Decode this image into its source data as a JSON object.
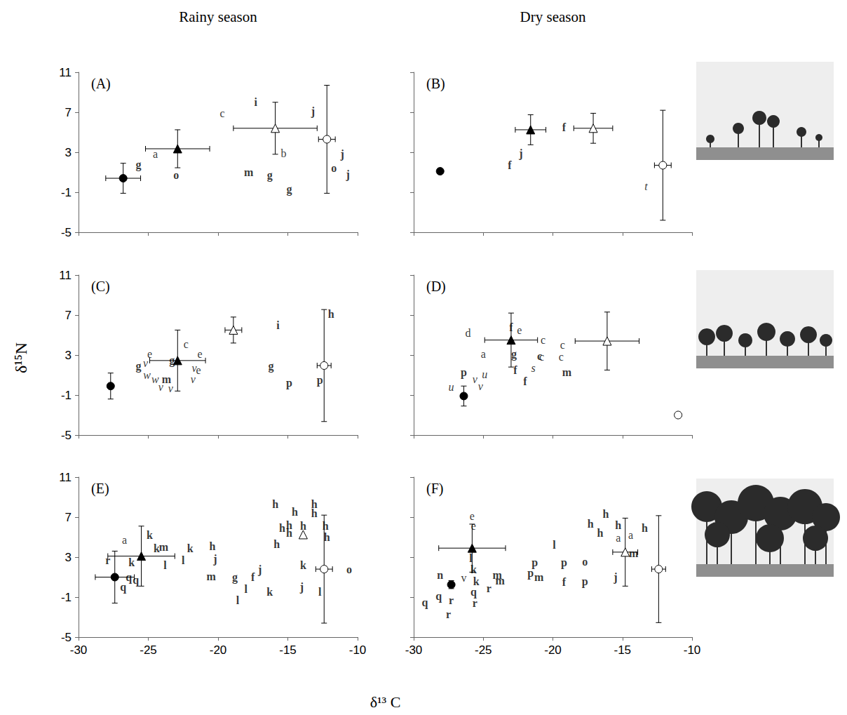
{
  "column_titles": [
    "Rainy season",
    "Dry season"
  ],
  "xlabel": "δ¹³ C",
  "ylabel": "δ¹⁵N",
  "chart_data": [
    {
      "type": "scatter",
      "title": "(A)",
      "xlim": [
        -30,
        -10
      ],
      "ylim": [
        -5,
        11
      ],
      "xticks": [
        -30,
        -25,
        -20,
        -15,
        -10
      ],
      "yticks": [
        -5,
        -1,
        3,
        7,
        11
      ],
      "tick_labels": "y",
      "series": [
        {
          "type": "text",
          "marker": "bold",
          "x": [
            -25.7,
            -23.0,
            -17.3,
            -17.8,
            -16.3,
            -14.9,
            -13.2,
            -11.7,
            -11.1,
            -10.7
          ],
          "y": [
            1.8,
            0.7,
            8.0,
            1.0,
            0.7,
            -0.7,
            7.1,
            1.4,
            2.8,
            0.8
          ],
          "labels": [
            "g",
            "o",
            "i",
            "m",
            "g",
            "g",
            "j",
            "o",
            "j",
            "j"
          ]
        },
        {
          "type": "text",
          "marker": "normal",
          "x": [
            -24.5,
            -19.7,
            -15.3
          ],
          "y": [
            2.8,
            6.9,
            2.9
          ],
          "labels": [
            "a",
            "c",
            "b"
          ]
        },
        {
          "type": "scatter",
          "marker": "circle",
          "color": "#000000",
          "x": [
            -26.8
          ],
          "y": [
            0.4
          ],
          "x_err": [
            1.25
          ],
          "y_err": [
            1.5
          ]
        },
        {
          "type": "scatter",
          "marker": "triangle",
          "color": "#000000",
          "x": [
            -22.9
          ],
          "y": [
            3.35
          ],
          "x_err": [
            2.3
          ],
          "y_err": [
            1.9
          ]
        },
        {
          "type": "scatter",
          "marker": "triangle",
          "color": "#ffffff",
          "x": [
            -15.9
          ],
          "y": [
            5.4
          ],
          "x_err": [
            3.0
          ],
          "y_err": [
            2.6
          ]
        },
        {
          "type": "scatter",
          "marker": "circle",
          "color": "#ffffff",
          "x": [
            -12.2
          ],
          "y": [
            4.3
          ],
          "x_err": [
            0.6
          ],
          "y_err": [
            5.4
          ]
        }
      ]
    },
    {
      "type": "scatter",
      "title": "(B)",
      "xlim": [
        -30,
        -10
      ],
      "ylim": [
        -5,
        11
      ],
      "xticks": [
        -30,
        -25,
        -20,
        -15,
        -10
      ],
      "yticks": [
        -5,
        -1,
        3,
        7,
        11
      ],
      "tick_labels": false,
      "series": [
        {
          "type": "text",
          "marker": "bold",
          "x": [
            -23.1,
            -22.3,
            -19.2
          ],
          "y": [
            1.7,
            2.9,
            5.5
          ],
          "labels": [
            "f",
            "j",
            "f"
          ]
        },
        {
          "type": "text",
          "marker": "italic",
          "x": [
            -13.3
          ],
          "y": [
            -0.4
          ],
          "labels": [
            "t"
          ]
        },
        {
          "type": "scatter",
          "marker": "circle",
          "color": "#000000",
          "x": [
            -28.1
          ],
          "y": [
            1.1
          ],
          "x_err": [
            null
          ],
          "y_err": [
            null
          ]
        },
        {
          "type": "scatter",
          "marker": "triangle",
          "color": "#000000",
          "x": [
            -21.6
          ],
          "y": [
            5.25
          ],
          "x_err": [
            1.1
          ],
          "y_err": [
            1.5
          ]
        },
        {
          "type": "scatter",
          "marker": "triangle",
          "color": "#ffffff",
          "x": [
            -17.1
          ],
          "y": [
            5.4
          ],
          "x_err": [
            1.4
          ],
          "y_err": [
            1.5
          ]
        },
        {
          "type": "scatter",
          "marker": "circle",
          "color": "#ffffff",
          "x": [
            -12.1
          ],
          "y": [
            1.7
          ],
          "x_err": [
            0.6
          ],
          "y_err": [
            5.5
          ]
        }
      ]
    },
    {
      "type": "scatter",
      "title": "(C)",
      "xlim": [
        -30,
        -10
      ],
      "ylim": [
        -5,
        11
      ],
      "xticks": [
        -30,
        -25,
        -20,
        -15,
        -10
      ],
      "yticks": [
        -5,
        -1,
        3,
        7,
        11
      ],
      "tick_labels": "y",
      "series": [
        {
          "type": "text",
          "marker": "bold",
          "x": [
            -25.7,
            -23.3,
            -23.7,
            -15.7,
            -16.2,
            -14.9,
            -11.9,
            -12.7
          ],
          "y": [
            1.9,
            2.5,
            0.6,
            6.0,
            1.9,
            0.2,
            7.1,
            0.5
          ],
          "labels": [
            "g",
            "g",
            "m",
            "i",
            "g",
            "p",
            "h",
            "p"
          ]
        },
        {
          "type": "text",
          "marker": "normal",
          "x": [
            -24.9,
            -22.3,
            -21.3,
            -21.4
          ],
          "y": [
            3.1,
            4.1,
            3.1,
            1.5
          ],
          "labels": [
            "e",
            "c",
            "e",
            "e"
          ]
        },
        {
          "type": "text",
          "marker": "italic",
          "x": [
            -25.2,
            -25.1,
            -24.5,
            -24.1,
            -23.4,
            -21.7,
            -21.8
          ],
          "y": [
            2.2,
            1.0,
            0.6,
            -0.2,
            -0.3,
            1.7,
            0.6
          ],
          "labels": [
            "v",
            "w",
            "w",
            "v",
            "v",
            "v",
            "v"
          ]
        },
        {
          "type": "scatter",
          "marker": "circle",
          "color": "#000000",
          "x": [
            -27.7
          ],
          "y": [
            -0.1
          ],
          "x_err": [
            null
          ],
          "y_err": [
            1.3
          ]
        },
        {
          "type": "scatter",
          "marker": "triangle",
          "color": "#000000",
          "x": [
            -22.9
          ],
          "y": [
            2.45
          ],
          "x_err": [
            2.0
          ],
          "y_err": [
            3.05
          ]
        },
        {
          "type": "scatter",
          "marker": "triangle",
          "color": "#ffffff",
          "x": [
            -18.9
          ],
          "y": [
            5.5
          ],
          "x_err": [
            0.6
          ],
          "y_err": [
            1.3
          ]
        },
        {
          "type": "scatter",
          "marker": "circle",
          "color": "#ffffff",
          "x": [
            -12.4
          ],
          "y": [
            1.95
          ],
          "x_err": [
            0.5
          ],
          "y_err": [
            5.6
          ]
        }
      ]
    },
    {
      "type": "scatter",
      "title": "(D)",
      "xlim": [
        -30,
        -10
      ],
      "ylim": [
        -5,
        11
      ],
      "xticks": [
        -30,
        -25,
        -20,
        -15,
        -10
      ],
      "yticks": [
        -5,
        -1,
        3,
        7,
        11
      ],
      "tick_labels": false,
      "series": [
        {
          "type": "text",
          "marker": "bold",
          "x": [
            -23.0,
            -22.8,
            -22.7,
            -22.0,
            -26.4,
            -19.0,
            -20.95
          ],
          "y": [
            5.8,
            3.1,
            1.5,
            0.4,
            1.3,
            1.25,
            2.9
          ],
          "labels": [
            "f",
            "g",
            "f",
            "f",
            "p",
            "m",
            "c"
          ]
        },
        {
          "type": "text",
          "marker": "normal",
          "x": [
            -26.1,
            -25.0,
            -22.4,
            -20.7,
            -20.8,
            -19.3,
            -19.4
          ],
          "y": [
            5.2,
            3.1,
            5.5,
            4.5,
            2.8,
            4.0,
            2.85
          ],
          "labels": [
            "d",
            "a",
            "e",
            "c",
            "c",
            "c",
            "c"
          ]
        },
        {
          "type": "text",
          "marker": "italic",
          "x": [
            -21.4,
            -25.6,
            -24.9,
            -25.2,
            -27.3
          ],
          "y": [
            1.7,
            0.6,
            1.1,
            -0.1,
            -0.2
          ],
          "labels": [
            "s",
            "v",
            "u",
            "v",
            "u"
          ]
        },
        {
          "type": "scatter",
          "marker": "circle",
          "color": "#000000",
          "x": [
            -26.4
          ],
          "y": [
            -1.1
          ],
          "x_err": [
            null
          ],
          "y_err": [
            1.0
          ]
        },
        {
          "type": "scatter",
          "marker": "triangle",
          "color": "#000000",
          "x": [
            -23.0
          ],
          "y": [
            4.5
          ],
          "x_err": [
            1.9
          ],
          "y_err": [
            2.7
          ]
        },
        {
          "type": "scatter",
          "marker": "triangle",
          "color": "#ffffff",
          "x": [
            -16.1
          ],
          "y": [
            4.4
          ],
          "x_err": [
            2.3
          ],
          "y_err": [
            2.9
          ]
        },
        {
          "type": "scatter",
          "marker": "circle",
          "color": "#ffffff",
          "x": [
            -11.0
          ],
          "y": [
            -3.0
          ],
          "x_err": [
            null
          ],
          "y_err": [
            null
          ]
        }
      ]
    },
    {
      "type": "scatter",
      "title": "(E)",
      "xlim": [
        -30,
        -10
      ],
      "ylim": [
        -5,
        11
      ],
      "xticks": [
        -30,
        -25,
        -20,
        -15,
        -10
      ],
      "yticks": [
        -5,
        -1,
        3,
        7,
        11
      ],
      "tick_labels": true,
      "series": [
        {
          "type": "text",
          "marker": "bold",
          "x": [
            -27.9,
            -26.8,
            -26.4,
            -25.9,
            -26.2,
            -24.9,
            -24.4,
            -23.9,
            -23.8,
            -22.0,
            -22.5,
            -20.4,
            -20.2,
            -20.5,
            -18.8,
            -18.6,
            -18.0,
            -17.5,
            -17.0,
            -16.3,
            -15.9,
            -14.5,
            -13.1,
            -13.1,
            -15.4,
            -14.9,
            -14.9,
            -13.9,
            -12.3,
            -12.2,
            -15.8,
            -13.9,
            -14.0,
            -12.7,
            -10.6
          ],
          "y": [
            2.7,
            0.0,
            1.0,
            0.75,
            2.45,
            5.2,
            3.9,
            4.0,
            2.2,
            3.85,
            2.7,
            4.1,
            2.85,
            1.1,
            1.0,
            -1.35,
            -0.2,
            1.0,
            1.8,
            -0.45,
            8.3,
            7.5,
            8.3,
            7.4,
            5.9,
            6.2,
            5.4,
            6.1,
            6.1,
            5.0,
            4.3,
            2.2,
            0.0,
            -0.45,
            1.8
          ],
          "labels": [
            "r",
            "q",
            "q",
            "q",
            "k",
            "k",
            "k",
            "m",
            "l",
            "k",
            "l",
            "h",
            "j",
            "m",
            "g",
            "l",
            "l",
            "f",
            "j",
            "k",
            "h",
            "h",
            "h",
            "h",
            "h",
            "h",
            "h",
            "h",
            "h",
            "h",
            "h",
            "k",
            "j",
            "l",
            "o"
          ]
        },
        {
          "type": "text",
          "marker": "normal",
          "x": [
            -26.7
          ],
          "y": [
            4.75
          ],
          "labels": [
            "a"
          ]
        },
        {
          "type": "scatter",
          "marker": "circle",
          "color": "#000000",
          "x": [
            -27.4
          ],
          "y": [
            1.0
          ],
          "x_err": [
            1.4
          ],
          "y_err": [
            2.6
          ]
        },
        {
          "type": "scatter",
          "marker": "triangle",
          "color": "#000000",
          "x": [
            -25.5
          ],
          "y": [
            3.1
          ],
          "x_err": [
            2.4
          ],
          "y_err": [
            3.0
          ]
        },
        {
          "type": "scatter",
          "marker": "triangle",
          "color": "#ffffff",
          "x": [
            -13.9
          ],
          "y": [
            5.25
          ],
          "x_err": [
            null
          ],
          "y_err": [
            null
          ]
        },
        {
          "type": "scatter",
          "marker": "circle",
          "color": "#ffffff",
          "x": [
            -12.4
          ],
          "y": [
            1.8
          ],
          "x_err": [
            0.6
          ],
          "y_err": [
            5.4
          ]
        }
      ]
    },
    {
      "type": "scatter",
      "title": "(F)",
      "xlim": [
        -30,
        -10
      ],
      "ylim": [
        -5,
        11
      ],
      "xticks": [
        -30,
        -25,
        -20,
        -15,
        -10
      ],
      "yticks": [
        -5,
        -1,
        3,
        7,
        11
      ],
      "tick_labels": "x",
      "series": [
        {
          "type": "text",
          "marker": "bold",
          "x": [
            -25.9,
            -25.7,
            -25.5,
            -28.1,
            -29.2,
            -28.2,
            -27.3,
            -27.5,
            -25.7,
            -25.6,
            -24.6,
            -24.0,
            -23.8,
            -19.9,
            -21.3,
            -21.6,
            -21.0,
            -19.2,
            -19.2,
            -17.7,
            -17.7,
            -16.2,
            -17.3,
            -16.6,
            -15.3,
            -13.4,
            -14.2,
            -15.5
          ],
          "y": [
            2.9,
            1.75,
            0.55,
            1.2,
            -1.55,
            -0.9,
            -1.35,
            -2.7,
            -0.45,
            -1.6,
            -0.1,
            1.2,
            0.65,
            4.25,
            2.5,
            1.4,
            1.0,
            2.5,
            0.5,
            2.55,
            0.6,
            7.3,
            6.3,
            5.4,
            6.2,
            5.9,
            3.4,
            1.0
          ],
          "labels": [
            "l",
            "k",
            "k",
            "n",
            "q",
            "q",
            "r",
            "r",
            "q",
            "r",
            "r",
            "m",
            "m",
            "l",
            "p",
            "p",
            "m",
            "p",
            "f",
            "o",
            "p",
            "h",
            "h",
            "h",
            "h",
            "h",
            "m",
            "j"
          ]
        },
        {
          "type": "text",
          "marker": "normal",
          "x": [
            -25.8,
            -25.7,
            -26.4,
            -14.4,
            -15.3
          ],
          "y": [
            7.1,
            6.1,
            0.9,
            5.2,
            4.9
          ],
          "labels": [
            "e",
            "e",
            "v",
            "a",
            "a"
          ]
        },
        {
          "type": "scatter",
          "marker": "circle",
          "color": "#000000",
          "x": [
            -27.3
          ],
          "y": [
            0.25
          ],
          "x_err": [
            null
          ],
          "y_err": [
            0.4
          ]
        },
        {
          "type": "scatter",
          "marker": "triangle",
          "color": "#000000",
          "x": [
            -25.8
          ],
          "y": [
            3.9
          ],
          "x_err": [
            2.4
          ],
          "y_err": [
            2.4
          ]
        },
        {
          "type": "scatter",
          "marker": "triangle",
          "color": "#ffffff",
          "x": [
            -14.8
          ],
          "y": [
            3.5
          ],
          "x_err": [
            0.9
          ],
          "y_err": [
            3.4
          ]
        },
        {
          "type": "scatter",
          "marker": "circle",
          "color": "#ffffff",
          "x": [
            -12.4
          ],
          "y": [
            1.8
          ],
          "x_err": [
            0.5
          ],
          "y_err": [
            5.35
          ]
        }
      ]
    }
  ]
}
